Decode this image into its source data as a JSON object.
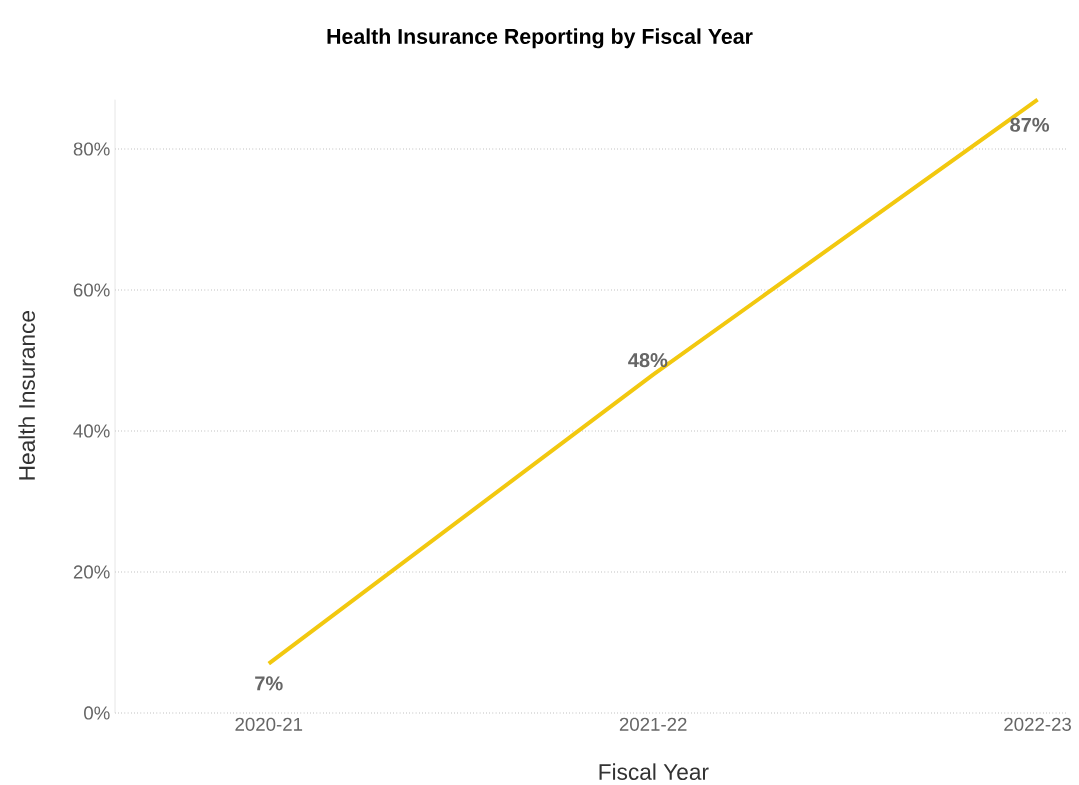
{
  "chart_data": {
    "type": "line",
    "title": "Health Insurance Reporting by Fiscal Year",
    "xlabel": "Fiscal Year",
    "ylabel": "Health Insurance",
    "categories": [
      "2020-21",
      "2021-22",
      "2022-23"
    ],
    "series": [
      {
        "color": "#f2c80f",
        "values": [
          7,
          48,
          87
        ],
        "value_labels": [
          "7%",
          "48%",
          "87%"
        ]
      }
    ],
    "yticks": [
      {
        "value": 0,
        "label": "0%"
      },
      {
        "value": 20,
        "label": "20%"
      },
      {
        "value": 40,
        "label": "40%"
      },
      {
        "value": 60,
        "label": "60%"
      },
      {
        "value": 80,
        "label": "80%"
      }
    ],
    "ylim": [
      0,
      87
    ],
    "grid": "y"
  }
}
